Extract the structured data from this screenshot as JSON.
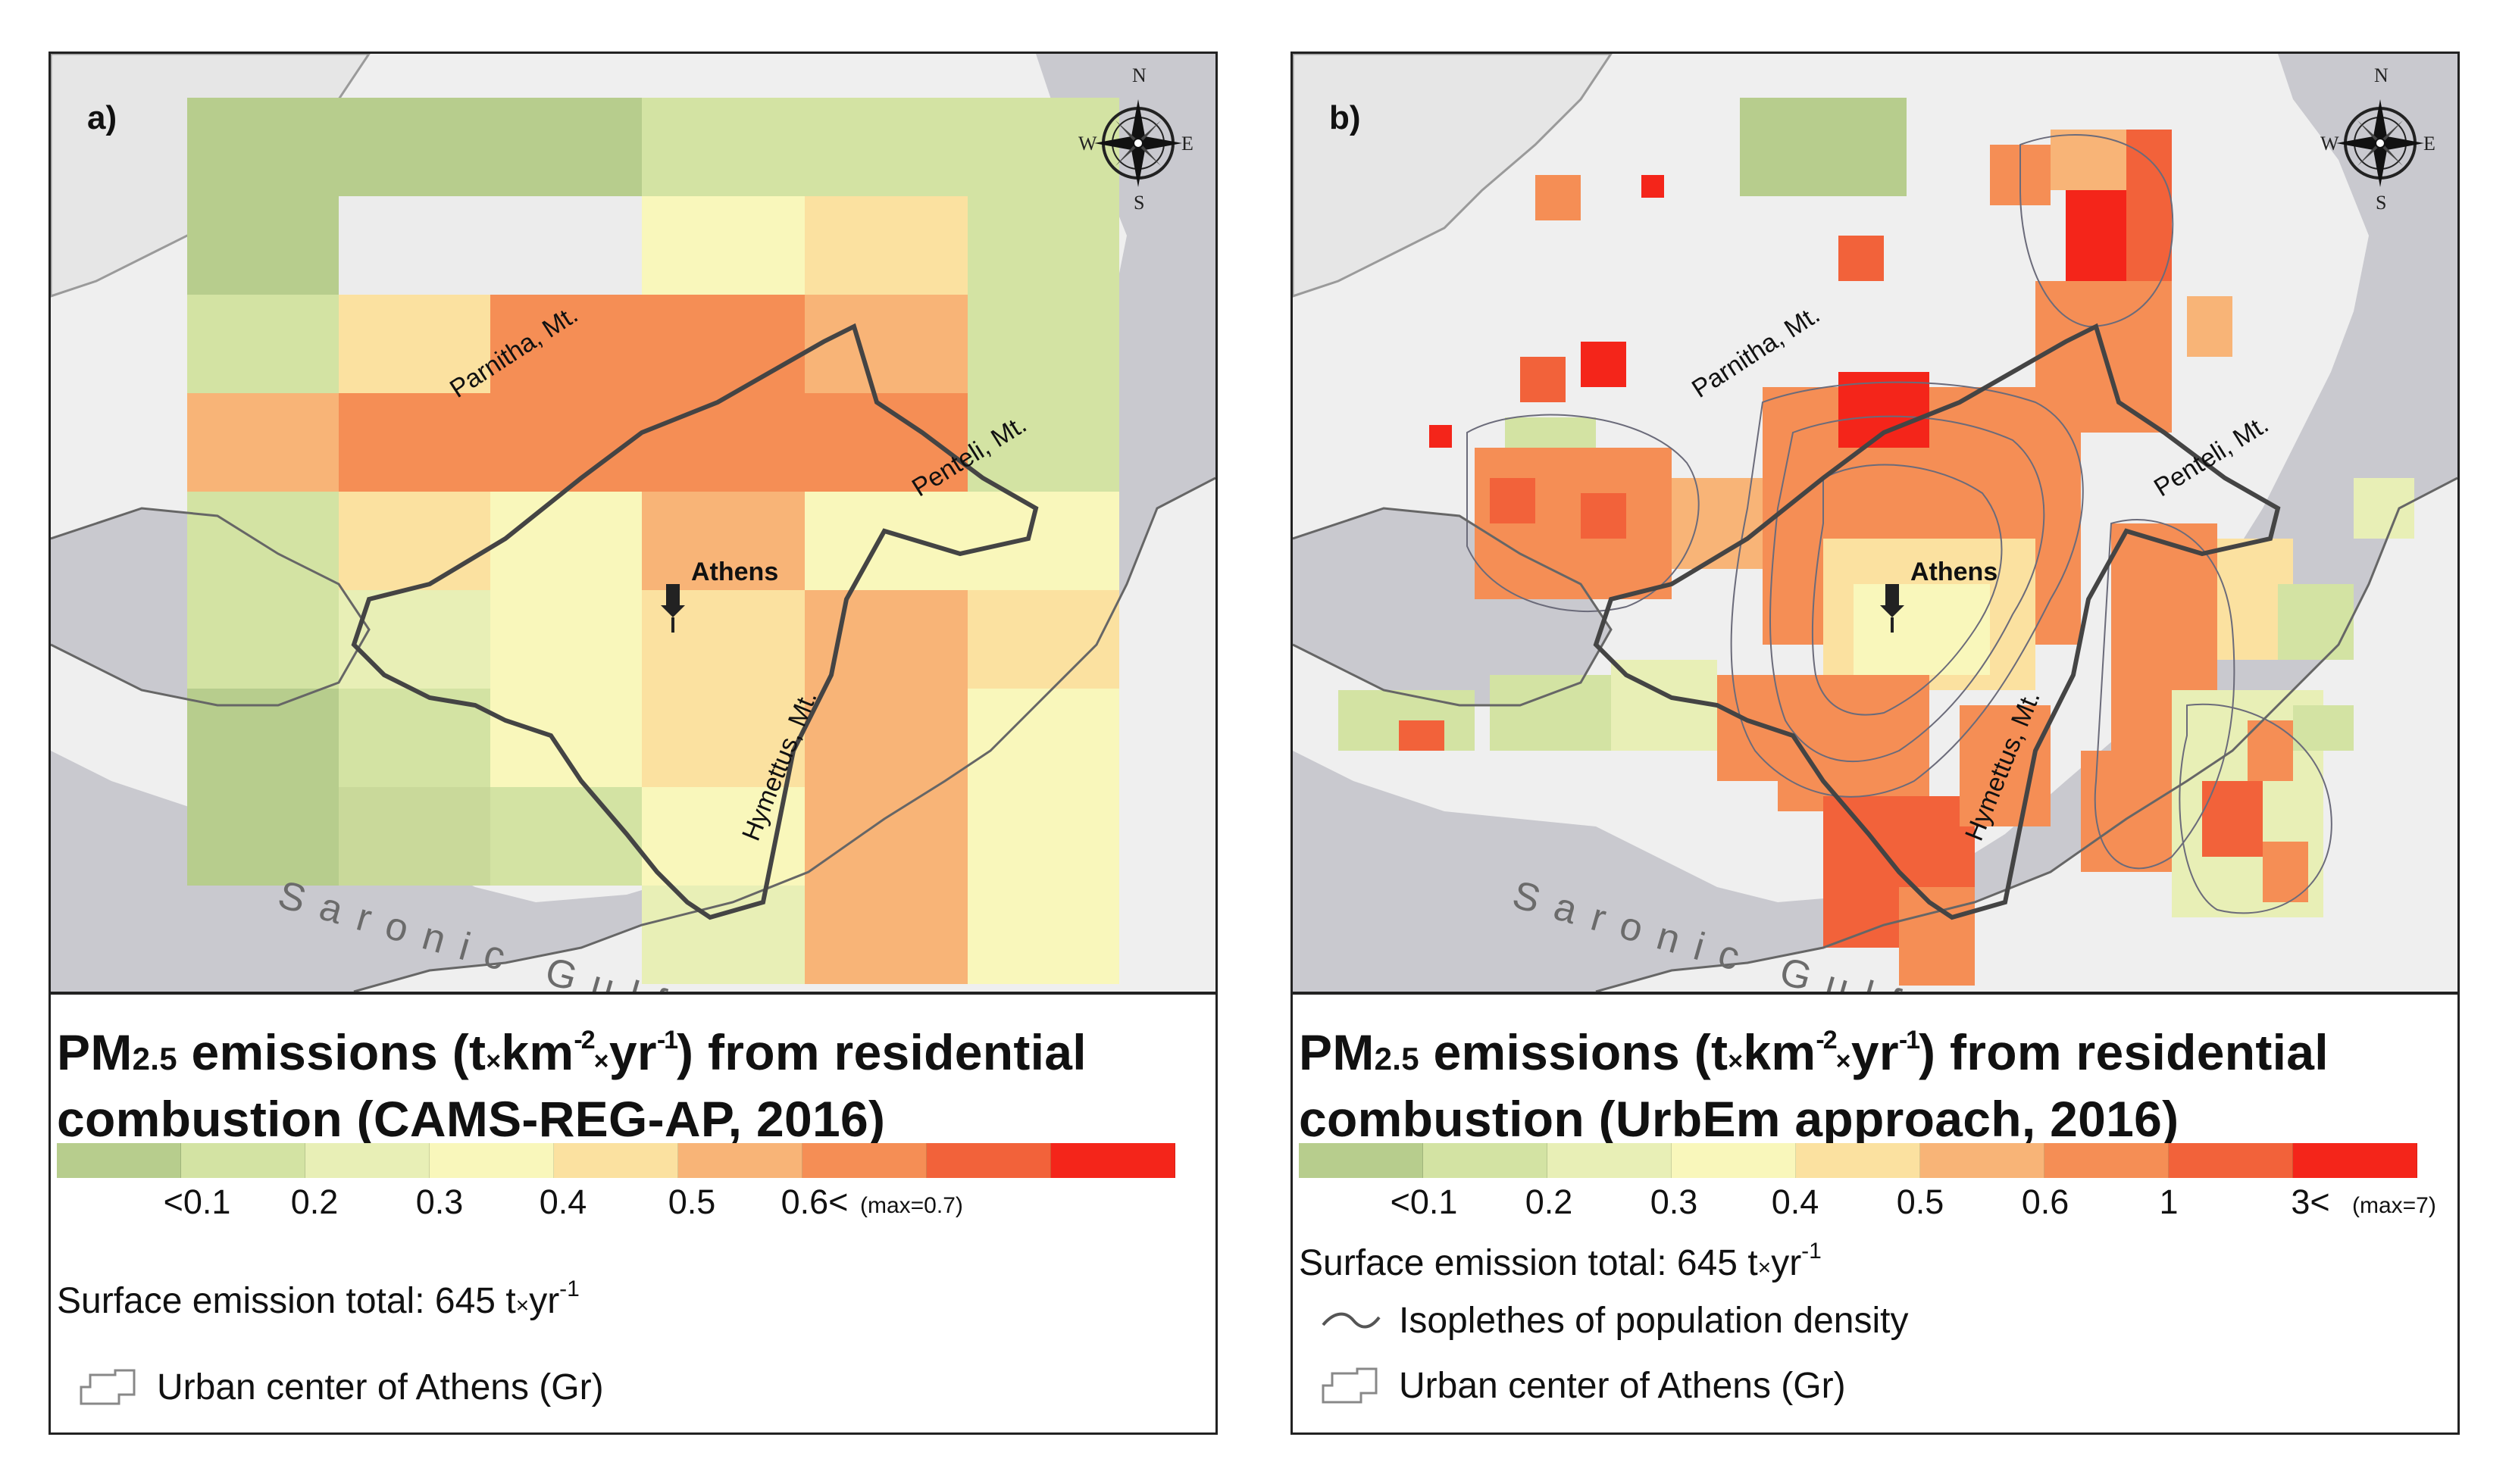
{
  "panel_a": {
    "label": "a)",
    "title_line1_pre": "PM",
    "title_sub": "2.5",
    "title_line1_mid": " emissions (t",
    "title_mul1": "×",
    "title_km": "km",
    "title_exp_km": "-2",
    "title_mul2": "×",
    "title_yr": "yr",
    "title_exp_yr": "-1",
    "title_line1_post": ") from residential",
    "title_line2": "combustion (CAMS-REG-AP, 2016)",
    "colorbar_colors": [
      "#b7cd8d",
      "#d3e3a3",
      "#e8efb6",
      "#f9f7bb",
      "#fbe1a0",
      "#f8b477",
      "#f58e55",
      "#f2623a",
      "#f4251a"
    ],
    "tick_labels": [
      "<0.1",
      "0.2",
      "0.3",
      "0.4",
      "0.5",
      "0.6<"
    ],
    "max_note": "(max=0.7)",
    "surface_label": "Surface emission total: 645 t",
    "surface_mul": "×",
    "surface_unit": "yr",
    "surface_exp": "-1",
    "urban_label": "Urban center of Athens (Gr)"
  },
  "panel_b": {
    "label": "b)",
    "title_line1_pre": "PM",
    "title_sub": "2.5",
    "title_line1_mid": " emissions (t",
    "title_mul1": "×",
    "title_km": "km",
    "title_exp_km": "-2",
    "title_mul2": "×",
    "title_yr": "yr",
    "title_exp_yr": "-1",
    "title_line1_post": ") from residential",
    "title_line2": "combustion (UrbEm approach, 2016)",
    "colorbar_colors": [
      "#b7cd8d",
      "#d3e3a3",
      "#e8efb6",
      "#f9f7bb",
      "#fbe1a0",
      "#f8b477",
      "#f58e55",
      "#f2623a",
      "#f4251a"
    ],
    "tick_labels": [
      "<0.1",
      "0.2",
      "0.3",
      "0.4",
      "0.5",
      "0.6",
      "1",
      "3<"
    ],
    "max_note": "(max=7)",
    "surface_label": "Surface emission total: 645 t",
    "surface_mul": "×",
    "surface_unit": "yr",
    "surface_exp": "-1",
    "isopleth_label": "Isoplethes of population density",
    "urban_label": "Urban center of Athens (Gr)"
  },
  "map_labels": {
    "parnitha": "Parnitha, Mt.",
    "penteli": "Penteli, Mt.",
    "hymettus": "Hymettus, Mt.",
    "athens": "Athens",
    "saronic": "Saronic Gulf",
    "compass_n": "N",
    "compass_s": "S",
    "compass_e": "E",
    "compass_w": "W"
  },
  "colors": {
    "land": "#efefef",
    "sea": "#c9c9cf",
    "boundary": "#444444"
  }
}
